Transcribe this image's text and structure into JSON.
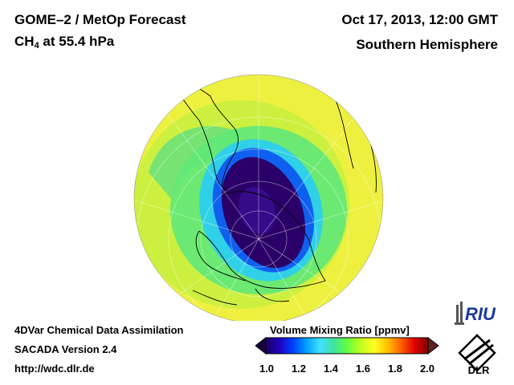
{
  "header": {
    "title_line1": "GOME–2 / MetOp Forecast",
    "species": "CH",
    "species_sub": "4",
    "level": " at 55.4 hPa",
    "date": "Oct 17, 2013, 12:00 GMT",
    "region": "Southern Hemisphere"
  },
  "footer": {
    "line1": "4DVar Chemical Data Assimilation",
    "line2": "SACADA Version 2.4",
    "line3": "http://wdc.dlr.de"
  },
  "colorbar": {
    "title": "Volume Mixing Ratio [ppmv]",
    "ticks": [
      "1.0",
      "1.2",
      "1.4",
      "1.6",
      "1.8",
      "2.0"
    ],
    "colors": [
      "#1a0060",
      "#2200c0",
      "#0040ff",
      "#00a0ff",
      "#40e0ff",
      "#40e0a0",
      "#60ff40",
      "#c0ff20",
      "#ffff20",
      "#ffc000",
      "#ff6000",
      "#e00000",
      "#800000"
    ]
  },
  "logos": {
    "riu": "RIU",
    "dlr": "DLR"
  },
  "icons": {
    "riu": "riu-logo-icon",
    "dlr": "dlr-logo-icon"
  }
}
